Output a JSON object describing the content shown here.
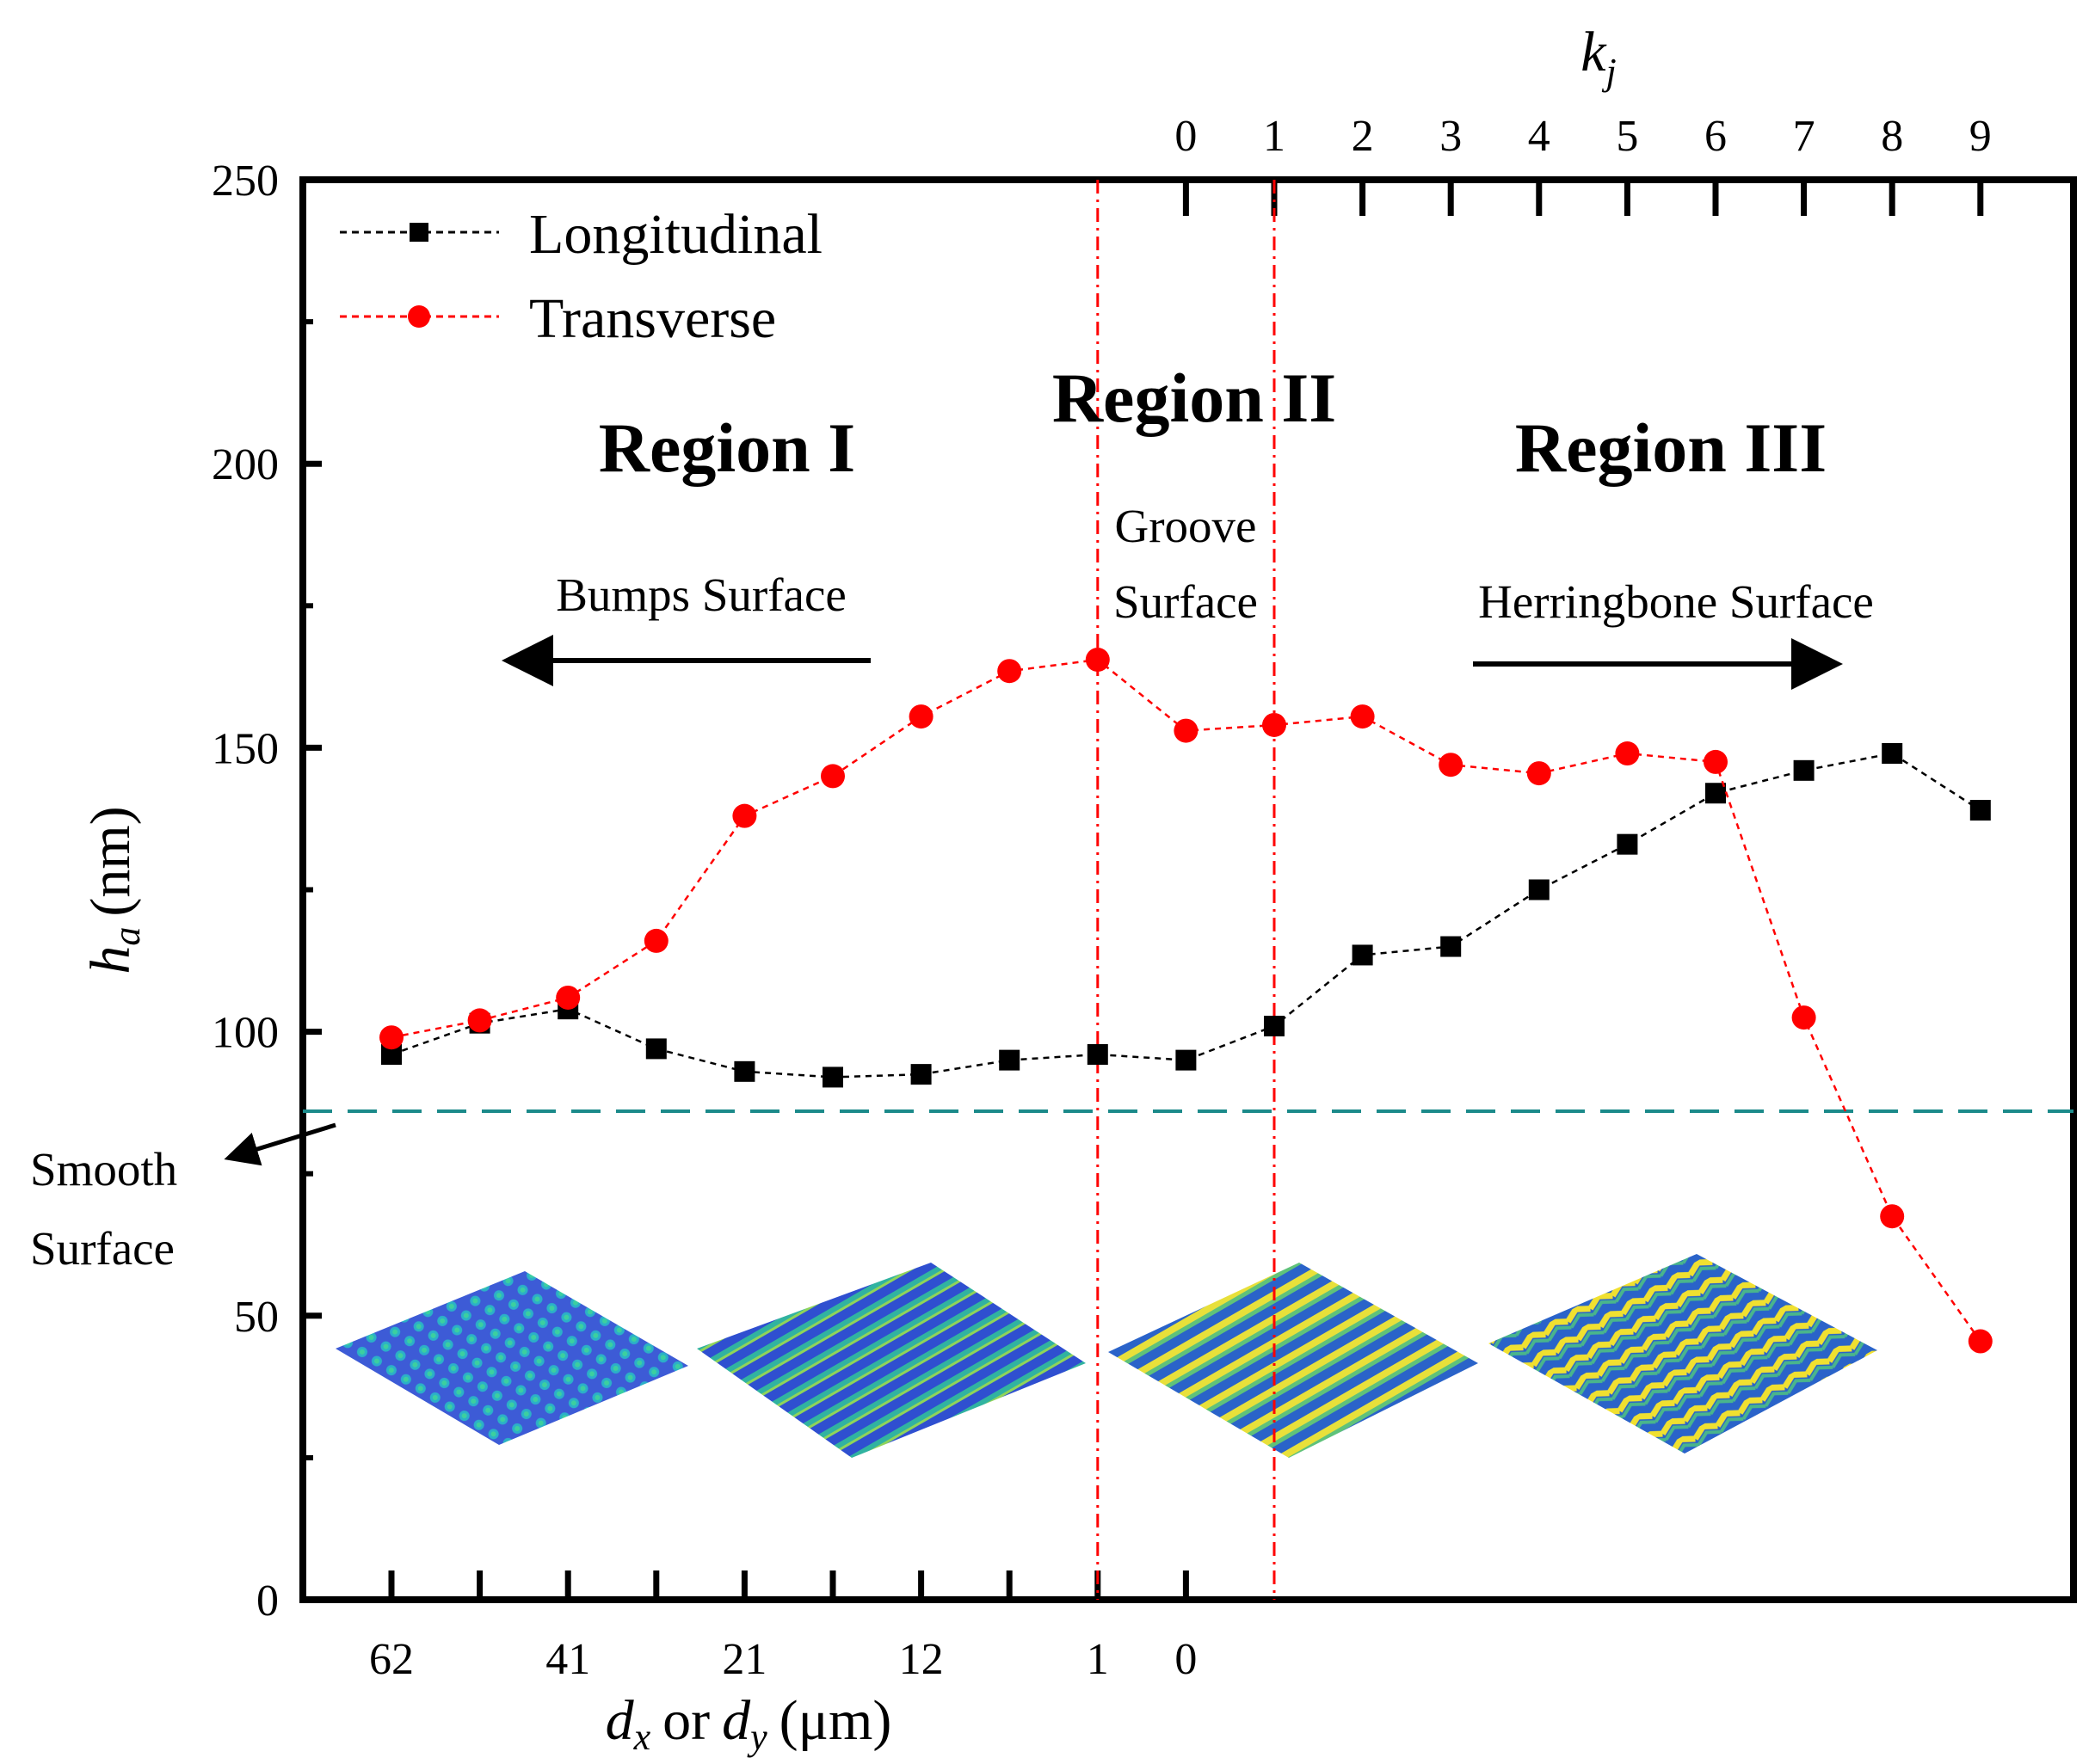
{
  "chart_data": {
    "type": "line",
    "title": "",
    "ylabel": "h",
    "ylabel_sub": "a",
    "ylabel_unit": "(nm)",
    "xlabel": {
      "d1": "d",
      "d1_sub": "x",
      "or": "or",
      "d2": "d",
      "d2_sub": "y",
      "unit": "(μm)"
    },
    "top_axis_label": {
      "main": "k",
      "sub": "j"
    },
    "ylim": [
      0,
      250
    ],
    "yticks": [
      0,
      50,
      100,
      150,
      200,
      250
    ],
    "x_positions": 19,
    "bottom_tick_labels": [
      {
        "pos": 1,
        "text": "62"
      },
      {
        "pos": 3,
        "text": "41"
      },
      {
        "pos": 5,
        "text": "21"
      },
      {
        "pos": 7,
        "text": "12"
      },
      {
        "pos": 9,
        "text": "1"
      },
      {
        "pos": 10,
        "text": "0"
      }
    ],
    "top_tick_labels": [
      {
        "pos": 10,
        "text": "0"
      },
      {
        "pos": 11,
        "text": "1"
      },
      {
        "pos": 12,
        "text": "2"
      },
      {
        "pos": 13,
        "text": "3"
      },
      {
        "pos": 14,
        "text": "4"
      },
      {
        "pos": 15,
        "text": "5"
      },
      {
        "pos": 16,
        "text": "6"
      },
      {
        "pos": 17,
        "text": "7"
      },
      {
        "pos": 18,
        "text": "8"
      },
      {
        "pos": 19,
        "text": "9"
      }
    ],
    "series": [
      {
        "name": "Longitudinal",
        "color": "#000000",
        "marker": "square",
        "x": [
          1,
          2,
          3,
          4,
          5,
          6,
          7,
          8,
          9,
          10,
          11,
          12,
          13,
          14,
          15,
          16,
          17,
          18,
          19
        ],
        "values": [
          96,
          101.5,
          104,
          97,
          93,
          92,
          92.5,
          95,
          96,
          95,
          101,
          113.5,
          115,
          125,
          133,
          142,
          146,
          149,
          139
        ]
      },
      {
        "name": "Transverse",
        "color": "#ff0000",
        "marker": "circle",
        "x": [
          1,
          2,
          3,
          4,
          5,
          6,
          7,
          8,
          9,
          10,
          11,
          12,
          13,
          14,
          15,
          16,
          17,
          18,
          19
        ],
        "values": [
          99,
          102,
          106,
          116,
          138,
          145,
          155.5,
          163.5,
          165.5,
          153,
          154,
          155.5,
          147,
          145.5,
          149,
          147.5,
          102.5,
          67.5,
          45.5
        ]
      }
    ],
    "vertical_lines": [
      {
        "x": 9,
        "color": "#ff0000",
        "style": "dash-dot"
      },
      {
        "x": 11,
        "color": "#ff0000",
        "style": "dash-dot"
      }
    ],
    "reference_line": {
      "y": 86,
      "color": "#1b8a8a",
      "style": "dashed",
      "label_line1": "Smooth",
      "label_line2": "Surface"
    },
    "regions": [
      {
        "label": "Region I",
        "surface": "Bumps Surface",
        "arrow": "left"
      },
      {
        "label": "Region II",
        "surface_line1": "Groove",
        "surface_line2": "Surface"
      },
      {
        "label": "Region III",
        "surface": "Herringbone Surface",
        "arrow": "right"
      }
    ],
    "legend": "top-left",
    "grid": false
  }
}
